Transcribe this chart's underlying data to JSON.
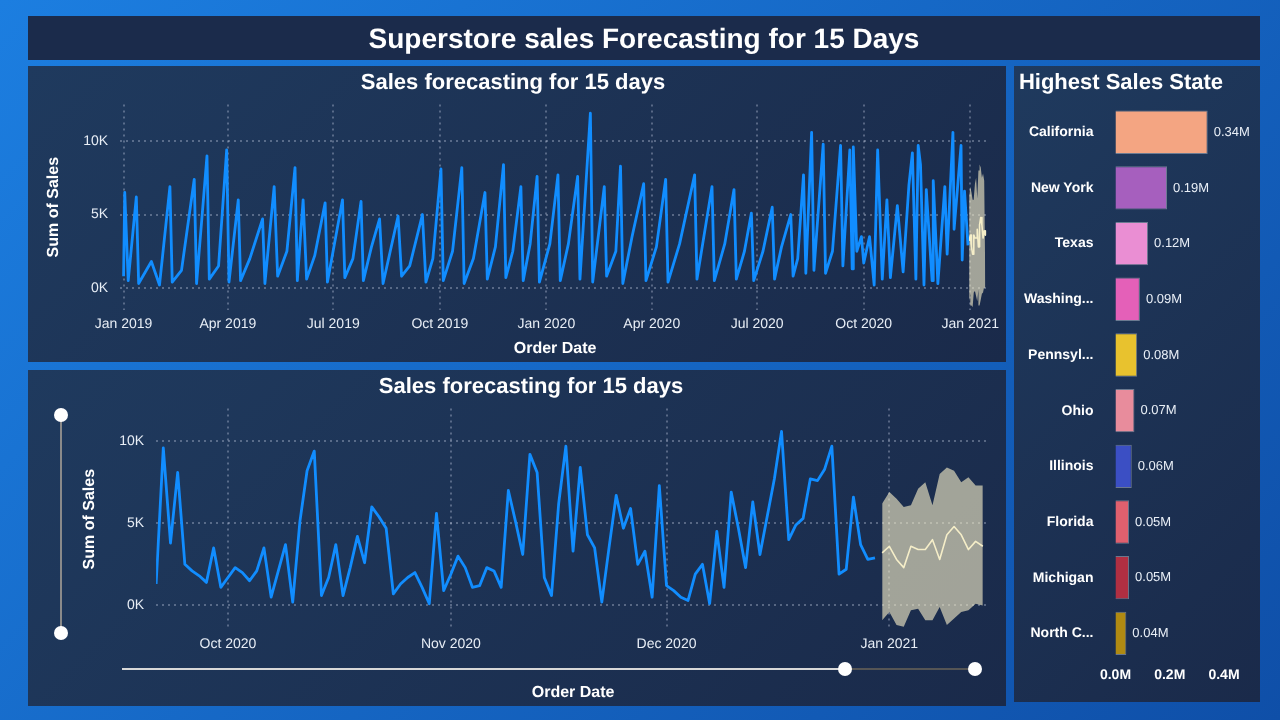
{
  "chart_data": [
    {
      "type": "other",
      "title": "Superstore sales Forecasting for 15 Days"
    },
    {
      "type": "line",
      "title": "Sales forecasting for 15 days",
      "xlabel": "Order Date",
      "ylabel": "Sum of Sales",
      "grid": true,
      "xlim": [
        "2018-12-29",
        "2021-01-18"
      ],
      "xticks": [
        {
          "value": "2019-01-01",
          "label": "Jan 2019"
        },
        {
          "value": "2019-04-01",
          "label": "Apr 2019"
        },
        {
          "value": "2019-07-01",
          "label": "Jul 2019"
        },
        {
          "value": "2019-10-01",
          "label": "Oct 2019"
        },
        {
          "value": "2020-01-01",
          "label": "Jan 2020"
        },
        {
          "value": "2020-04-01",
          "label": "Apr 2020"
        },
        {
          "value": "2020-07-01",
          "label": "Jul 2020"
        },
        {
          "value": "2020-10-01",
          "label": "Oct 2020"
        },
        {
          "value": "2021-01-01",
          "label": "Jan 2021"
        }
      ],
      "ylim": [
        -1500,
        12500
      ],
      "yticks": [
        {
          "value": 0,
          "label": "0K"
        },
        {
          "value": 5000,
          "label": "5K"
        },
        {
          "value": 10000,
          "label": "10K"
        }
      ],
      "series": [
        {
          "color": "#118dff",
          "x": [
            "2019-01-01",
            "2019-01-02",
            "2019-01-05",
            "2019-01-12",
            "2019-01-14",
            "2019-01-25",
            "2019-02-01",
            "2019-02-10",
            "2019-02-12",
            "2019-02-20",
            "2019-03-03",
            "2019-03-05",
            "2019-03-14",
            "2019-03-16",
            "2019-03-24",
            "2019-03-31",
            "2019-04-02",
            "2019-04-10",
            "2019-04-12",
            "2019-04-20",
            "2019-05-01",
            "2019-05-03",
            "2019-05-11",
            "2019-05-14",
            "2019-05-22",
            "2019-05-29",
            "2019-05-31",
            "2019-06-05",
            "2019-06-08",
            "2019-06-15",
            "2019-06-24",
            "2019-06-26",
            "2019-07-09",
            "2019-07-11",
            "2019-07-18",
            "2019-07-25",
            "2019-07-27",
            "2019-08-03",
            "2019-08-10",
            "2019-08-13",
            "2019-08-26",
            "2019-08-29",
            "2019-09-05",
            "2019-09-16",
            "2019-09-19",
            "2019-09-25",
            "2019-10-02",
            "2019-10-04",
            "2019-10-12",
            "2019-10-20",
            "2019-10-22",
            "2019-10-30",
            "2019-11-09",
            "2019-11-11",
            "2019-11-18",
            "2019-11-25",
            "2019-11-27",
            "2019-12-03",
            "2019-12-10",
            "2019-12-12",
            "2019-12-18",
            "2019-12-24",
            "2019-12-26",
            "2020-01-04",
            "2020-01-11",
            "2020-01-13",
            "2020-01-20",
            "2020-01-28",
            "2020-01-30",
            "2020-02-08",
            "2020-02-10",
            "2020-02-20",
            "2020-02-22",
            "2020-03-01",
            "2020-03-05",
            "2020-03-07",
            "2020-03-15",
            "2020-03-25",
            "2020-03-27",
            "2020-04-05",
            "2020-04-13",
            "2020-04-15",
            "2020-04-25",
            "2020-05-08",
            "2020-05-10",
            "2020-05-23",
            "2020-05-25",
            "2020-06-03",
            "2020-06-11",
            "2020-06-13",
            "2020-06-20",
            "2020-06-26",
            "2020-06-28",
            "2020-07-06",
            "2020-07-14",
            "2020-07-16",
            "2020-07-22",
            "2020-07-30",
            "2020-08-01",
            "2020-08-05",
            "2020-08-10",
            "2020-08-12",
            "2020-08-17",
            "2020-08-19",
            "2020-08-27",
            "2020-08-29",
            "2020-09-04",
            "2020-09-11",
            "2020-09-13",
            "2020-09-19",
            "2020-09-21",
            "2020-09-22",
            "2020-09-25",
            "2020-09-29",
            "2020-10-01",
            "2020-10-06",
            "2020-10-10",
            "2020-10-13",
            "2020-10-17",
            "2020-10-21",
            "2020-10-24",
            "2020-10-30",
            "2020-11-04",
            "2020-11-09",
            "2020-11-12",
            "2020-11-15",
            "2020-11-17",
            "2020-11-19",
            "2020-11-22",
            "2020-11-24",
            "2020-11-29",
            "2020-11-30",
            "2020-12-04",
            "2020-12-10",
            "2020-12-12",
            "2020-12-17",
            "2020-12-18",
            "2020-12-24",
            "2020-12-25",
            "2020-12-27",
            "2020-12-30"
          ],
          "values": [
            800,
            6500,
            500,
            6200,
            300,
            1800,
            200,
            6900,
            400,
            1200,
            7400,
            300,
            9000,
            600,
            1500,
            9400,
            400,
            6000,
            500,
            2000,
            4700,
            300,
            6900,
            800,
            2500,
            8200,
            500,
            6000,
            600,
            2200,
            5800,
            400,
            6000,
            700,
            2000,
            5900,
            500,
            2800,
            4700,
            300,
            4900,
            800,
            1500,
            5000,
            400,
            2000,
            8100,
            500,
            2500,
            8200,
            300,
            2000,
            6500,
            600,
            2800,
            8400,
            700,
            2500,
            6900,
            500,
            3000,
            7600,
            400,
            3000,
            7700,
            500,
            3000,
            7600,
            600,
            11900,
            400,
            6900,
            800,
            2500,
            8300,
            300,
            3500,
            7100,
            500,
            2800,
            7400,
            400,
            3000,
            7700,
            600,
            6900,
            500,
            3000,
            6700,
            600,
            2500,
            5100,
            500,
            2500,
            5500,
            600,
            2800,
            5000,
            800,
            2000,
            7700,
            1000,
            10600,
            1200,
            9800,
            1000,
            2500,
            9700,
            1500,
            9400,
            1300,
            9600,
            2500,
            3500,
            1700,
            3500,
            200,
            9400,
            600,
            6000,
            700,
            5600,
            1100,
            7000,
            9200,
            600,
            9700,
            8400,
            200,
            6700,
            500,
            7300,
            300,
            6900,
            2300,
            10600,
            4000,
            9700,
            1900,
            6600,
            2900
          ]
        },
        {
          "color": "#f5eec8",
          "x": [
            "2020-12-31",
            "2021-01-01",
            "2021-01-02",
            "2021-01-03",
            "2021-01-04",
            "2021-01-05",
            "2021-01-06",
            "2021-01-07",
            "2021-01-08",
            "2021-01-09",
            "2021-01-10",
            "2021-01-11",
            "2021-01-12",
            "2021-01-13",
            "2021-01-14"
          ],
          "values": [
            3200,
            3600,
            2800,
            2300,
            3600,
            3400,
            3400,
            4000,
            2800,
            4300,
            4800,
            4300,
            3400,
            3900,
            3600
          ],
          "lower": [
            -900,
            -400,
            -1200,
            -1300,
            -300,
            -200,
            -900,
            -900,
            -100,
            -1200,
            -800,
            -400,
            -300,
            100,
            0
          ],
          "upper": [
            6200,
            6900,
            6500,
            6000,
            6100,
            7100,
            7500,
            6100,
            8000,
            8400,
            8200,
            7500,
            7800,
            7300,
            7300
          ]
        }
      ]
    },
    {
      "type": "line",
      "title": "Sales forecasting for 15 days",
      "xlabel": "Order Date",
      "ylabel": "Sum of Sales",
      "grid": true,
      "xlim": [
        "2020-09-21",
        "2021-01-15"
      ],
      "xticks": [
        {
          "value": "2020-10-01",
          "label": "Oct 2020"
        },
        {
          "value": "2020-11-01",
          "label": "Nov 2020"
        },
        {
          "value": "2020-12-01",
          "label": "Dec 2020"
        },
        {
          "value": "2021-01-01",
          "label": "Jan 2021"
        }
      ],
      "ylim": [
        -1500,
        12000
      ],
      "yticks": [
        {
          "value": 0,
          "label": "0K"
        },
        {
          "value": 5000,
          "label": "5K"
        },
        {
          "value": 10000,
          "label": "10K"
        }
      ],
      "series": [
        {
          "color": "#118dff",
          "x": [
            "2020-09-21",
            "2020-09-22",
            "2020-09-23",
            "2020-09-24",
            "2020-09-25",
            "2020-09-26",
            "2020-09-27",
            "2020-09-28",
            "2020-09-29",
            "2020-09-30",
            "2020-10-01",
            "2020-10-02",
            "2020-10-03",
            "2020-10-04",
            "2020-10-05",
            "2020-10-06",
            "2020-10-07",
            "2020-10-08",
            "2020-10-09",
            "2020-10-10",
            "2020-10-11",
            "2020-10-12",
            "2020-10-13",
            "2020-10-14",
            "2020-10-15",
            "2020-10-16",
            "2020-10-17",
            "2020-10-18",
            "2020-10-19",
            "2020-10-20",
            "2020-10-21",
            "2020-10-22",
            "2020-10-23",
            "2020-10-24",
            "2020-10-25",
            "2020-10-26",
            "2020-10-27",
            "2020-10-28",
            "2020-10-29",
            "2020-10-30",
            "2020-10-31",
            "2020-11-01",
            "2020-11-02",
            "2020-11-03",
            "2020-11-04",
            "2020-11-05",
            "2020-11-06",
            "2020-11-07",
            "2020-11-08",
            "2020-11-09",
            "2020-11-10",
            "2020-11-11",
            "2020-11-12",
            "2020-11-13",
            "2020-11-14",
            "2020-11-15",
            "2020-11-16",
            "2020-11-17",
            "2020-11-18",
            "2020-11-19",
            "2020-11-20",
            "2020-11-21",
            "2020-11-22",
            "2020-11-23",
            "2020-11-24",
            "2020-11-25",
            "2020-11-26",
            "2020-11-27",
            "2020-11-28",
            "2020-11-29",
            "2020-11-30",
            "2020-12-01",
            "2020-12-02",
            "2020-12-03",
            "2020-12-04",
            "2020-12-05",
            "2020-12-06",
            "2020-12-07",
            "2020-12-08",
            "2020-12-09",
            "2020-12-10",
            "2020-12-11",
            "2020-12-12",
            "2020-12-13",
            "2020-12-14",
            "2020-12-15",
            "2020-12-16",
            "2020-12-17",
            "2020-12-18",
            "2020-12-19",
            "2020-12-20",
            "2020-12-21",
            "2020-12-22",
            "2020-12-23",
            "2020-12-24",
            "2020-12-25",
            "2020-12-26",
            "2020-12-27",
            "2020-12-28",
            "2020-12-29",
            "2020-12-30"
          ],
          "values": [
            1300,
            9600,
            3800,
            8100,
            2500,
            2100,
            1800,
            1400,
            3500,
            1100,
            1700,
            2300,
            2000,
            1500,
            2100,
            3500,
            500,
            2100,
            3700,
            200,
            5100,
            8200,
            9400,
            600,
            1700,
            3700,
            600,
            2300,
            4200,
            2600,
            6000,
            5400,
            4700,
            700,
            1300,
            1700,
            2000,
            1100,
            100,
            5600,
            900,
            1900,
            3000,
            2300,
            1100,
            1200,
            2300,
            2100,
            1100,
            7000,
            5100,
            3100,
            9200,
            8100,
            1700,
            600,
            6200,
            9700,
            3300,
            8400,
            4300,
            3500,
            200,
            3500,
            6700,
            4700,
            5900,
            2500,
            3300,
            500,
            7300,
            1200,
            900,
            500,
            300,
            1900,
            2500,
            100,
            4500,
            1100,
            6900,
            4700,
            2300,
            6300,
            3100,
            5400,
            7700,
            10600,
            4000,
            4900,
            5300,
            7700,
            7600,
            8300,
            9700,
            1900,
            2200,
            6600,
            3700,
            2800,
            2900
          ]
        },
        {
          "color": "#f5eec8",
          "x": [
            "2020-12-31",
            "2021-01-01",
            "2021-01-02",
            "2021-01-03",
            "2021-01-04",
            "2021-01-05",
            "2021-01-06",
            "2021-01-07",
            "2021-01-08",
            "2021-01-09",
            "2021-01-10",
            "2021-01-11",
            "2021-01-12",
            "2021-01-13",
            "2021-01-14"
          ],
          "values": [
            3200,
            3600,
            2800,
            2300,
            3600,
            3400,
            3400,
            4000,
            2800,
            4300,
            4800,
            4300,
            3400,
            3900,
            3600
          ],
          "lower": [
            -900,
            -400,
            -1200,
            -1300,
            -300,
            -200,
            -900,
            -900,
            -100,
            -1200,
            -800,
            -400,
            -300,
            100,
            0
          ],
          "upper": [
            6200,
            6900,
            6500,
            6000,
            6100,
            7100,
            7500,
            6100,
            8000,
            8400,
            8200,
            7500,
            7800,
            7300,
            7300
          ]
        }
      ]
    },
    {
      "type": "bar",
      "orientation": "horizontal",
      "title": "Highest Sales State",
      "categories": [
        "California",
        "New York",
        "Texas",
        "Washing...",
        "Pennsyl...",
        "Ohio",
        "Illinois",
        "Florida",
        "Michigan",
        "North C..."
      ],
      "values": [
        340000,
        190000,
        120000,
        90000,
        80000,
        70000,
        60000,
        50000,
        50000,
        40000
      ],
      "value_labels": [
        "0.34M",
        "0.19M",
        "0.12M",
        "0.09M",
        "0.08M",
        "0.07M",
        "0.06M",
        "0.05M",
        "0.05M",
        "0.04M"
      ],
      "colors": [
        "#f4a582",
        "#a65fbe",
        "#ea8ed3",
        "#e460b8",
        "#e8c22e",
        "#e88c9c",
        "#3b4fc4",
        "#e0606e",
        "#b02f42",
        "#b08a12"
      ],
      "xlim": [
        0,
        400000
      ],
      "xticks": [
        {
          "value": 0,
          "label": "0.0M"
        },
        {
          "value": 200000,
          "label": "0.2M"
        },
        {
          "value": 400000,
          "label": "0.4M"
        }
      ]
    }
  ]
}
